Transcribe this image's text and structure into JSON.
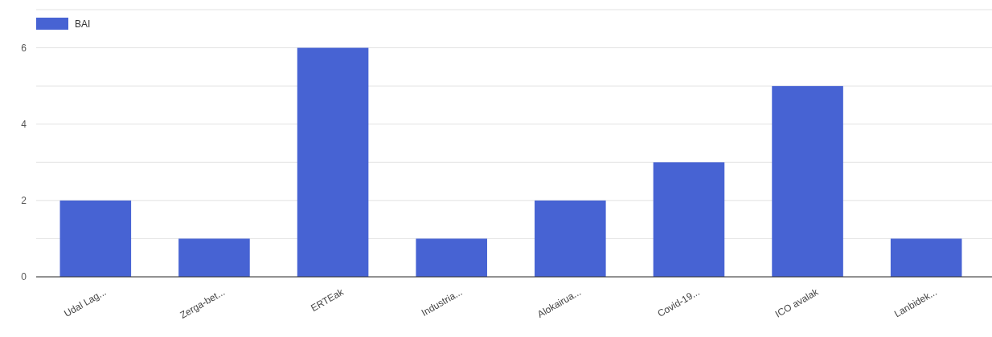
{
  "chart_data": {
    "type": "bar",
    "categories": [
      "Udal Lag...",
      "Zerga-bet...",
      "ERTEak",
      "Industria...",
      "Alokairua...",
      "Covid-19...",
      "ICO avalak",
      "Lanbidek..."
    ],
    "series": [
      {
        "name": "BAI",
        "color": "#4763d3",
        "values": [
          2,
          1,
          6,
          1,
          2,
          3,
          5,
          1
        ]
      }
    ],
    "ylim": [
      0,
      7
    ],
    "yticks": [
      0,
      {
        "value": 1,
        "label": null
      },
      2,
      {
        "value": 3,
        "label": null
      },
      4,
      {
        "value": 5,
        "label": null
      },
      6,
      {
        "value": 7,
        "label": null
      }
    ],
    "grid": "y",
    "legend": "top left"
  }
}
